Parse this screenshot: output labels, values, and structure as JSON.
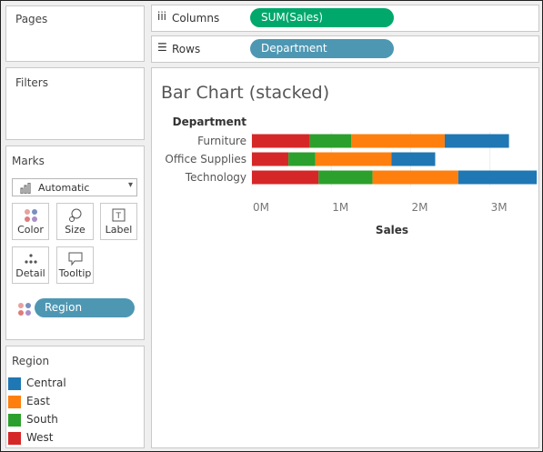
{
  "panels": {
    "pages_title": "Pages",
    "filters_title": "Filters",
    "marks_title": "Marks",
    "legend_title": "Region"
  },
  "shelves": {
    "columns": {
      "label": "Columns",
      "pill": "SUM(Sales)",
      "pill_color": "#00a86b"
    },
    "rows": {
      "label": "Rows",
      "pill": "Department",
      "pill_color": "#4e97b3"
    }
  },
  "marks": {
    "mark_type": "Automatic",
    "buttons": [
      "Color",
      "Size",
      "Label",
      "Detail",
      "Tooltip"
    ],
    "color_field": "Region"
  },
  "legend": [
    {
      "label": "Central",
      "color": "#1f77b4"
    },
    {
      "label": "East",
      "color": "#ff7f0e"
    },
    {
      "label": "South",
      "color": "#2ca02c"
    },
    {
      "label": "West",
      "color": "#d62728"
    }
  ],
  "chart_data": {
    "type": "bar",
    "orientation": "horizontal",
    "stacked": true,
    "title": "Bar Chart (stacked)",
    "row_header": "Department",
    "xlabel": "Sales",
    "xlim": [
      0,
      3600000
    ],
    "x_ticks": [
      0,
      1000000,
      2000000,
      3000000
    ],
    "x_tick_labels": [
      "0M",
      "1M",
      "2M",
      "3M"
    ],
    "categories": [
      "Furniture",
      "Office Supplies",
      "Technology"
    ],
    "series": [
      {
        "name": "West",
        "color": "#d62728",
        "values": [
          730000,
          460000,
          840000
        ]
      },
      {
        "name": "South",
        "color": "#2ca02c",
        "values": [
          520000,
          340000,
          680000
        ]
      },
      {
        "name": "East",
        "color": "#ff7f0e",
        "values": [
          1180000,
          960000,
          1080000
        ]
      },
      {
        "name": "Central",
        "color": "#1f77b4",
        "values": [
          810000,
          550000,
          990000
        ]
      }
    ]
  }
}
